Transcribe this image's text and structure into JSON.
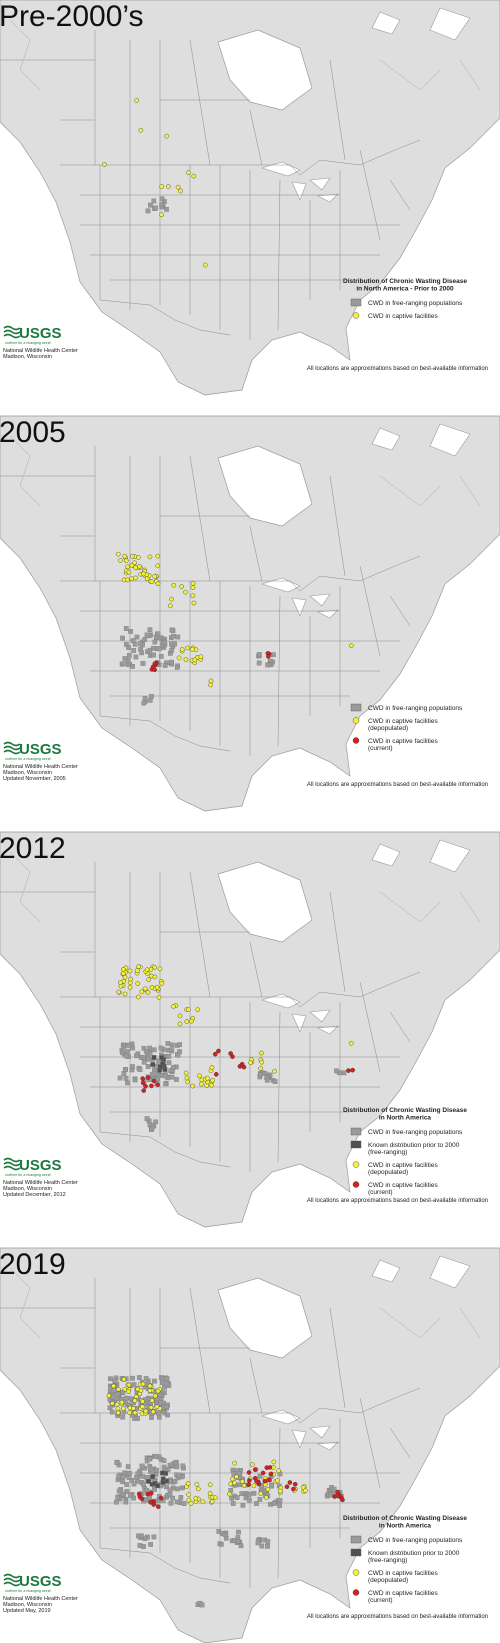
{
  "logo": {
    "text": "USGS",
    "tagline": "science for a changing world"
  },
  "panels": [
    {
      "title": "Pre-2000’s",
      "legend_title": [
        "Distribution of Chronic Wasting Disease",
        "in North America - Prior to 2000"
      ],
      "legend": [
        {
          "lines": [
            "CWD in free-ranging populations"
          ],
          "shape": "square",
          "color": "#9a9a9a"
        },
        {
          "lines": [
            "CWD in captive facilities"
          ],
          "shape": "circle",
          "color": "#f2f23a"
        }
      ],
      "credits": [
        "National Wildlife Health Center",
        "Madison, Wisconsin"
      ],
      "disclaimer": "All locations are approximations based on best-available information"
    },
    {
      "title": "2005",
      "legend": [
        {
          "lines": [
            "CWD in free-ranging populations"
          ],
          "shape": "square",
          "color": "#9a9a9a"
        },
        {
          "lines": [
            "CWD in captive facilities",
            "(depopulated)"
          ],
          "shape": "circle",
          "color": "#f2f23a"
        },
        {
          "lines": [
            "CWD in captive facilities",
            "(current)"
          ],
          "shape": "circle",
          "color": "#d42020"
        }
      ],
      "credits": [
        "National Wildlife Health Center",
        "Madison, Wisconsin",
        "Updated November, 2005"
      ],
      "disclaimer": "All locations are approximations based on best-available information"
    },
    {
      "title": "2012",
      "legend_title": [
        "Distribution of Chronic Wasting Disease",
        "in North America"
      ],
      "legend": [
        {
          "lines": [
            "CWD in free-ranging populations"
          ],
          "shape": "square",
          "color": "#9a9a9a"
        },
        {
          "lines": [
            "Known distribution prior to 2000",
            "(free-ranging)"
          ],
          "shape": "square",
          "color": "#505050"
        },
        {
          "lines": [
            "CWD in captive facilities",
            "(depopulated)"
          ],
          "shape": "circle",
          "color": "#f2f23a"
        },
        {
          "lines": [
            "CWD in captive facilities",
            "(current)"
          ],
          "shape": "circle",
          "color": "#d42020"
        }
      ],
      "credits": [
        "National Wildlife Health Center",
        "Madison, Wisconsin",
        "Updated December, 2012"
      ],
      "disclaimer": "All locations are approximations based on best-available information"
    },
    {
      "title": "2019",
      "legend_title": [
        "Distribution of Chronic Wasting Disease",
        "in North America"
      ],
      "legend": [
        {
          "lines": [
            "CWD in free-ranging populations"
          ],
          "shape": "square",
          "color": "#9a9a9a"
        },
        {
          "lines": [
            "Known distribution prior to 2000",
            "(free-ranging)"
          ],
          "shape": "square",
          "color": "#505050"
        },
        {
          "lines": [
            "CWD in captive facilities",
            "(depopulated)"
          ],
          "shape": "circle",
          "color": "#f2f23a"
        },
        {
          "lines": [
            "CWD in captive facilities",
            "(current)"
          ],
          "shape": "circle",
          "color": "#d42020"
        }
      ],
      "credits": [
        "National Wildlife Health Center",
        "Madison, Wisconsin",
        "Updated May, 2019"
      ],
      "disclaimer": "All locations are approximations based on best-available information"
    }
  ]
}
